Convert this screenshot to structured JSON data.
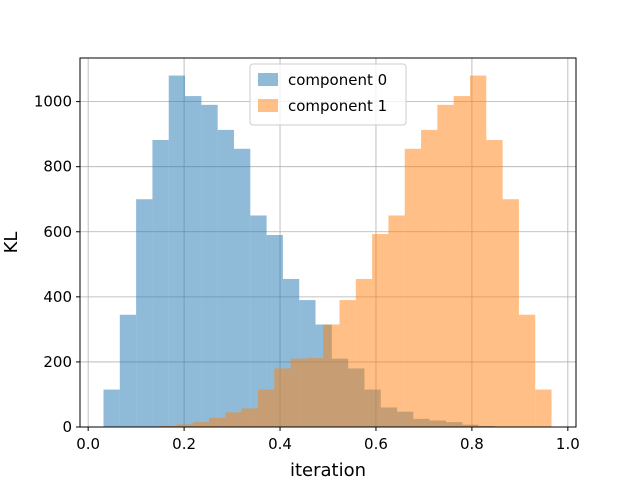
{
  "chart_data": {
    "type": "bar",
    "title": "",
    "xlabel": "iteration",
    "ylabel": "KL",
    "xlim": [
      -0.017,
      1.017
    ],
    "ylim": [
      0,
      1134
    ],
    "xticks": [
      0.0,
      0.2,
      0.4,
      0.6,
      0.8,
      1.0
    ],
    "xtick_labels": [
      "0.0",
      "0.2",
      "0.4",
      "0.6",
      "0.8",
      "1.0"
    ],
    "yticks": [
      0,
      200,
      400,
      600,
      800,
      1000
    ],
    "ytick_labels": [
      "0",
      "200",
      "400",
      "600",
      "800",
      "1000"
    ],
    "grid": true,
    "legend_position": "top-center",
    "series": [
      {
        "name": "component 0",
        "color": "#1f77b4",
        "alpha": 0.5,
        "bins": [
          {
            "x0": 0.032,
            "x1": 0.066,
            "count": 115
          },
          {
            "x0": 0.066,
            "x1": 0.1,
            "count": 345
          },
          {
            "x0": 0.1,
            "x1": 0.134,
            "count": 700
          },
          {
            "x0": 0.134,
            "x1": 0.168,
            "count": 882
          },
          {
            "x0": 0.168,
            "x1": 0.202,
            "count": 1080
          },
          {
            "x0": 0.202,
            "x1": 0.236,
            "count": 1017
          },
          {
            "x0": 0.236,
            "x1": 0.27,
            "count": 990
          },
          {
            "x0": 0.27,
            "x1": 0.304,
            "count": 913
          },
          {
            "x0": 0.304,
            "x1": 0.338,
            "count": 855
          },
          {
            "x0": 0.338,
            "x1": 0.372,
            "count": 650
          },
          {
            "x0": 0.372,
            "x1": 0.406,
            "count": 590
          },
          {
            "x0": 0.406,
            "x1": 0.44,
            "count": 455
          },
          {
            "x0": 0.44,
            "x1": 0.474,
            "count": 390
          },
          {
            "x0": 0.474,
            "x1": 0.508,
            "count": 315
          },
          {
            "x0": 0.508,
            "x1": 0.542,
            "count": 210
          },
          {
            "x0": 0.542,
            "x1": 0.576,
            "count": 180
          },
          {
            "x0": 0.576,
            "x1": 0.61,
            "count": 115
          },
          {
            "x0": 0.61,
            "x1": 0.644,
            "count": 60
          },
          {
            "x0": 0.644,
            "x1": 0.678,
            "count": 47
          },
          {
            "x0": 0.678,
            "x1": 0.712,
            "count": 25
          },
          {
            "x0": 0.712,
            "x1": 0.746,
            "count": 20
          },
          {
            "x0": 0.746,
            "x1": 0.78,
            "count": 15
          },
          {
            "x0": 0.78,
            "x1": 0.814,
            "count": 7
          },
          {
            "x0": 0.814,
            "x1": 0.848,
            "count": 3
          }
        ]
      },
      {
        "name": "component 1",
        "color": "#ff7f0e",
        "alpha": 0.5,
        "bins": [
          {
            "x0": 0.15,
            "x1": 0.184,
            "count": 3
          },
          {
            "x0": 0.184,
            "x1": 0.218,
            "count": 8
          },
          {
            "x0": 0.218,
            "x1": 0.252,
            "count": 15
          },
          {
            "x0": 0.252,
            "x1": 0.286,
            "count": 28
          },
          {
            "x0": 0.286,
            "x1": 0.32,
            "count": 45
          },
          {
            "x0": 0.32,
            "x1": 0.354,
            "count": 57
          },
          {
            "x0": 0.354,
            "x1": 0.388,
            "count": 115
          },
          {
            "x0": 0.388,
            "x1": 0.422,
            "count": 180
          },
          {
            "x0": 0.422,
            "x1": 0.456,
            "count": 210
          },
          {
            "x0": 0.456,
            "x1": 0.49,
            "count": 212
          },
          {
            "x0": 0.49,
            "x1": 0.524,
            "count": 315
          },
          {
            "x0": 0.524,
            "x1": 0.558,
            "count": 390
          },
          {
            "x0": 0.558,
            "x1": 0.592,
            "count": 455
          },
          {
            "x0": 0.592,
            "x1": 0.626,
            "count": 593
          },
          {
            "x0": 0.626,
            "x1": 0.66,
            "count": 650
          },
          {
            "x0": 0.66,
            "x1": 0.694,
            "count": 855
          },
          {
            "x0": 0.694,
            "x1": 0.728,
            "count": 913
          },
          {
            "x0": 0.728,
            "x1": 0.762,
            "count": 990
          },
          {
            "x0": 0.762,
            "x1": 0.796,
            "count": 1017
          },
          {
            "x0": 0.796,
            "x1": 0.83,
            "count": 1080
          },
          {
            "x0": 0.83,
            "x1": 0.864,
            "count": 882
          },
          {
            "x0": 0.864,
            "x1": 0.898,
            "count": 700
          },
          {
            "x0": 0.898,
            "x1": 0.932,
            "count": 345
          },
          {
            "x0": 0.932,
            "x1": 0.966,
            "count": 115
          }
        ]
      }
    ]
  }
}
